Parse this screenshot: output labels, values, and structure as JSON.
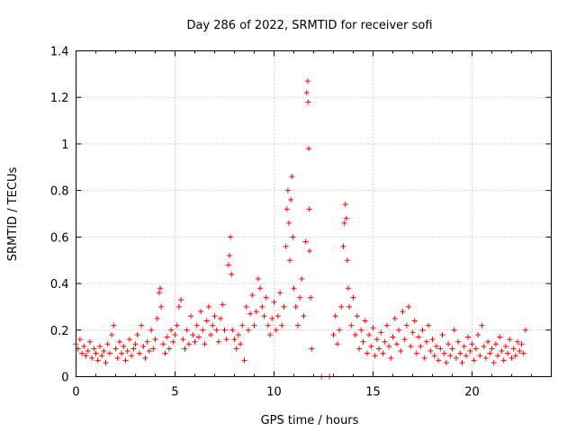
{
  "colors": {
    "series": "#ff0000"
  },
  "chart_data": {
    "type": "scatter",
    "title": "Day 286 of 2022, SRMTID for receiver sofi",
    "xlabel": "GPS time / hours",
    "ylabel": "SRMTID / TECUs",
    "xlim": [
      0,
      24
    ],
    "ylim": [
      0,
      1.4
    ],
    "xticks": [
      0,
      5,
      10,
      15,
      20
    ],
    "yticks": [
      0,
      0.2,
      0.4,
      0.6,
      0.8,
      1,
      1.2,
      1.4
    ],
    "xtick_labels": [
      "0",
      "5",
      "10",
      "15",
      "20"
    ],
    "ytick_labels": [
      "0",
      "0.2",
      "0.4",
      "0.6",
      "0.8",
      "1",
      "1.2",
      "1.4"
    ],
    "grid": true,
    "marker": "+",
    "series": [
      {
        "name": "sofi",
        "points": [
          [
            0.0,
            0.14
          ],
          [
            0.1,
            0.12
          ],
          [
            0.2,
            0.16
          ],
          [
            0.3,
            0.1
          ],
          [
            0.4,
            0.13
          ],
          [
            0.5,
            0.09
          ],
          [
            0.6,
            0.11
          ],
          [
            0.7,
            0.15
          ],
          [
            0.8,
            0.08
          ],
          [
            0.9,
            0.12
          ],
          [
            1.0,
            0.1
          ],
          [
            1.1,
            0.07
          ],
          [
            1.2,
            0.13
          ],
          [
            1.3,
            0.09
          ],
          [
            1.4,
            0.11
          ],
          [
            1.5,
            0.06
          ],
          [
            1.6,
            0.14
          ],
          [
            1.7,
            0.1
          ],
          [
            1.8,
            0.18
          ],
          [
            1.9,
            0.22
          ],
          [
            2.0,
            0.12
          ],
          [
            2.1,
            0.08
          ],
          [
            2.2,
            0.15
          ],
          [
            2.3,
            0.1
          ],
          [
            2.4,
            0.13
          ],
          [
            2.5,
            0.07
          ],
          [
            2.6,
            0.11
          ],
          [
            2.7,
            0.16
          ],
          [
            2.8,
            0.09
          ],
          [
            2.9,
            0.12
          ],
          [
            3.0,
            0.14
          ],
          [
            3.1,
            0.18
          ],
          [
            3.2,
            0.1
          ],
          [
            3.3,
            0.22
          ],
          [
            3.4,
            0.13
          ],
          [
            3.5,
            0.08
          ],
          [
            3.6,
            0.15
          ],
          [
            3.7,
            0.11
          ],
          [
            3.8,
            0.2
          ],
          [
            3.9,
            0.12
          ],
          [
            4.0,
            0.16
          ],
          [
            4.1,
            0.25
          ],
          [
            4.2,
            0.36
          ],
          [
            4.25,
            0.38
          ],
          [
            4.3,
            0.3
          ],
          [
            4.4,
            0.14
          ],
          [
            4.5,
            0.1
          ],
          [
            4.6,
            0.17
          ],
          [
            4.7,
            0.12
          ],
          [
            4.8,
            0.2
          ],
          [
            4.9,
            0.15
          ],
          [
            5.0,
            0.18
          ],
          [
            5.1,
            0.22
          ],
          [
            5.2,
            0.3
          ],
          [
            5.3,
            0.33
          ],
          [
            5.4,
            0.16
          ],
          [
            5.5,
            0.12
          ],
          [
            5.6,
            0.2
          ],
          [
            5.7,
            0.14
          ],
          [
            5.8,
            0.26
          ],
          [
            5.9,
            0.18
          ],
          [
            6.0,
            0.15
          ],
          [
            6.1,
            0.22
          ],
          [
            6.2,
            0.17
          ],
          [
            6.3,
            0.28
          ],
          [
            6.4,
            0.2
          ],
          [
            6.5,
            0.14
          ],
          [
            6.6,
            0.24
          ],
          [
            6.7,
            0.3
          ],
          [
            6.8,
            0.18
          ],
          [
            6.9,
            0.22
          ],
          [
            7.0,
            0.26
          ],
          [
            7.1,
            0.2
          ],
          [
            7.2,
            0.15
          ],
          [
            7.3,
            0.25
          ],
          [
            7.4,
            0.31
          ],
          [
            7.5,
            0.2
          ],
          [
            7.6,
            0.16
          ],
          [
            7.7,
            0.48
          ],
          [
            7.75,
            0.52
          ],
          [
            7.8,
            0.6
          ],
          [
            7.85,
            0.44
          ],
          [
            7.9,
            0.2
          ],
          [
            8.0,
            0.16
          ],
          [
            8.1,
            0.12
          ],
          [
            8.2,
            0.18
          ],
          [
            8.3,
            0.14
          ],
          [
            8.4,
            0.22
          ],
          [
            8.5,
            0.07
          ],
          [
            8.6,
            0.3
          ],
          [
            8.7,
            0.2
          ],
          [
            8.8,
            0.27
          ],
          [
            8.9,
            0.35
          ],
          [
            9.0,
            0.22
          ],
          [
            9.1,
            0.28
          ],
          [
            9.2,
            0.42
          ],
          [
            9.3,
            0.38
          ],
          [
            9.4,
            0.3
          ],
          [
            9.5,
            0.26
          ],
          [
            9.6,
            0.34
          ],
          [
            9.7,
            0.22
          ],
          [
            9.8,
            0.18
          ],
          [
            9.9,
            0.25
          ],
          [
            10.0,
            0.32
          ],
          [
            10.1,
            0.2
          ],
          [
            10.2,
            0.26
          ],
          [
            10.3,
            0.36
          ],
          [
            10.4,
            0.22
          ],
          [
            10.5,
            0.3
          ],
          [
            10.6,
            0.56
          ],
          [
            10.65,
            0.72
          ],
          [
            10.7,
            0.8
          ],
          [
            10.75,
            0.66
          ],
          [
            10.8,
            0.5
          ],
          [
            10.85,
            0.76
          ],
          [
            10.9,
            0.86
          ],
          [
            10.95,
            0.6
          ],
          [
            11.0,
            0.38
          ],
          [
            11.1,
            0.3
          ],
          [
            11.2,
            0.22
          ],
          [
            11.3,
            0.34
          ],
          [
            11.4,
            0.42
          ],
          [
            11.5,
            0.26
          ],
          [
            11.6,
            0.58
          ],
          [
            11.65,
            1.22
          ],
          [
            11.7,
            1.27
          ],
          [
            11.72,
            1.18
          ],
          [
            11.75,
            0.98
          ],
          [
            11.78,
            0.72
          ],
          [
            11.8,
            0.54
          ],
          [
            11.85,
            0.34
          ],
          [
            11.9,
            0.12
          ],
          [
            12.4,
            0.0
          ],
          [
            12.8,
            0.0
          ],
          [
            13.0,
            0.18
          ],
          [
            13.1,
            0.26
          ],
          [
            13.2,
            0.14
          ],
          [
            13.3,
            0.2
          ],
          [
            13.4,
            0.3
          ],
          [
            13.5,
            0.56
          ],
          [
            13.55,
            0.66
          ],
          [
            13.6,
            0.74
          ],
          [
            13.65,
            0.68
          ],
          [
            13.7,
            0.5
          ],
          [
            13.75,
            0.38
          ],
          [
            13.8,
            0.3
          ],
          [
            13.9,
            0.22
          ],
          [
            14.0,
            0.34
          ],
          [
            14.1,
            0.18
          ],
          [
            14.2,
            0.26
          ],
          [
            14.3,
            0.12
          ],
          [
            14.4,
            0.2
          ],
          [
            14.5,
            0.15
          ],
          [
            14.6,
            0.24
          ],
          [
            14.7,
            0.1
          ],
          [
            14.8,
            0.18
          ],
          [
            14.9,
            0.13
          ],
          [
            15.0,
            0.21
          ],
          [
            15.1,
            0.09
          ],
          [
            15.2,
            0.16
          ],
          [
            15.3,
            0.12
          ],
          [
            15.4,
            0.19
          ],
          [
            15.5,
            0.1
          ],
          [
            15.6,
            0.15
          ],
          [
            15.7,
            0.22
          ],
          [
            15.8,
            0.13
          ],
          [
            15.9,
            0.08
          ],
          [
            16.0,
            0.17
          ],
          [
            16.1,
            0.25
          ],
          [
            16.2,
            0.14
          ],
          [
            16.3,
            0.2
          ],
          [
            16.4,
            0.11
          ],
          [
            16.5,
            0.28
          ],
          [
            16.6,
            0.16
          ],
          [
            16.7,
            0.22
          ],
          [
            16.8,
            0.3
          ],
          [
            16.9,
            0.13
          ],
          [
            17.0,
            0.19
          ],
          [
            17.1,
            0.24
          ],
          [
            17.2,
            0.1
          ],
          [
            17.3,
            0.17
          ],
          [
            17.4,
            0.13
          ],
          [
            17.5,
            0.2
          ],
          [
            17.6,
            0.08
          ],
          [
            17.7,
            0.15
          ],
          [
            17.8,
            0.22
          ],
          [
            17.9,
            0.11
          ],
          [
            18.0,
            0.16
          ],
          [
            18.1,
            0.09
          ],
          [
            18.2,
            0.13
          ],
          [
            18.3,
            0.07
          ],
          [
            18.4,
            0.12
          ],
          [
            18.5,
            0.18
          ],
          [
            18.6,
            0.1
          ],
          [
            18.7,
            0.06
          ],
          [
            18.8,
            0.14
          ],
          [
            18.9,
            0.09
          ],
          [
            19.0,
            0.12
          ],
          [
            19.1,
            0.2
          ],
          [
            19.2,
            0.08
          ],
          [
            19.3,
            0.15
          ],
          [
            19.4,
            0.1
          ],
          [
            19.5,
            0.06
          ],
          [
            19.6,
            0.13
          ],
          [
            19.7,
            0.09
          ],
          [
            19.8,
            0.17
          ],
          [
            19.9,
            0.11
          ],
          [
            20.0,
            0.14
          ],
          [
            20.1,
            0.07
          ],
          [
            20.2,
            0.12
          ],
          [
            20.3,
            0.18
          ],
          [
            20.4,
            0.09
          ],
          [
            20.5,
            0.22
          ],
          [
            20.6,
            0.13
          ],
          [
            20.7,
            0.08
          ],
          [
            20.8,
            0.15
          ],
          [
            20.9,
            0.1
          ],
          [
            21.0,
            0.12
          ],
          [
            21.1,
            0.06
          ],
          [
            21.2,
            0.14
          ],
          [
            21.3,
            0.09
          ],
          [
            21.4,
            0.17
          ],
          [
            21.5,
            0.11
          ],
          [
            21.6,
            0.07
          ],
          [
            21.7,
            0.13
          ],
          [
            21.8,
            0.1
          ],
          [
            21.9,
            0.16
          ],
          [
            22.0,
            0.08
          ],
          [
            22.1,
            0.12
          ],
          [
            22.2,
            0.09
          ],
          [
            22.3,
            0.15
          ],
          [
            22.4,
            0.11
          ],
          [
            22.5,
            0.14
          ],
          [
            22.6,
            0.1
          ],
          [
            22.7,
            0.2
          ]
        ]
      }
    ]
  }
}
